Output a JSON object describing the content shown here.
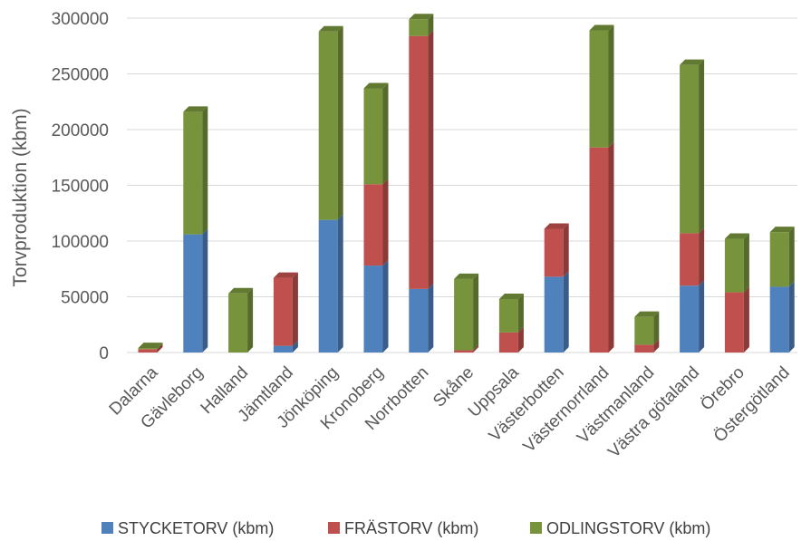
{
  "chart_data": {
    "type": "bar",
    "stacked": true,
    "style": "3d-column",
    "title": "",
    "xlabel": "",
    "ylabel": "Torvproduktion (kbm)",
    "ylim": [
      0,
      300000
    ],
    "yticks": [
      0,
      50000,
      100000,
      150000,
      200000,
      250000,
      300000
    ],
    "grid": true,
    "legend_position": "bottom",
    "categories": [
      "Dalarna",
      "Gävleborg",
      "Halland",
      "Jämtland",
      "Jönköping",
      "Kronoberg",
      "Norrbotten",
      "Skåne",
      "Uppsala",
      "Västerbotten",
      "Västernorrland",
      "Västmanland",
      "Västra götaland",
      "Örebro",
      "Östergötland"
    ],
    "series": [
      {
        "name": "STYCKETORV (kbm)",
        "color": "#4f81bd",
        "values": [
          0,
          106000,
          0,
          6000,
          119000,
          78000,
          57000,
          0,
          0,
          68000,
          0,
          0,
          60000,
          0,
          59000
        ]
      },
      {
        "name": "FRÄSTORV (kbm)",
        "color": "#c0504d",
        "values": [
          3000,
          0,
          0,
          61000,
          0,
          73000,
          227000,
          2000,
          18000,
          43000,
          184000,
          7000,
          47000,
          54000,
          0
        ]
      },
      {
        "name": "ODLINGSTORV (kbm)",
        "color": "#77933c",
        "values": [
          1000,
          110000,
          53000,
          0,
          169000,
          86000,
          15000,
          64000,
          30000,
          0,
          105000,
          25000,
          151000,
          48000,
          49000
        ]
      }
    ]
  }
}
